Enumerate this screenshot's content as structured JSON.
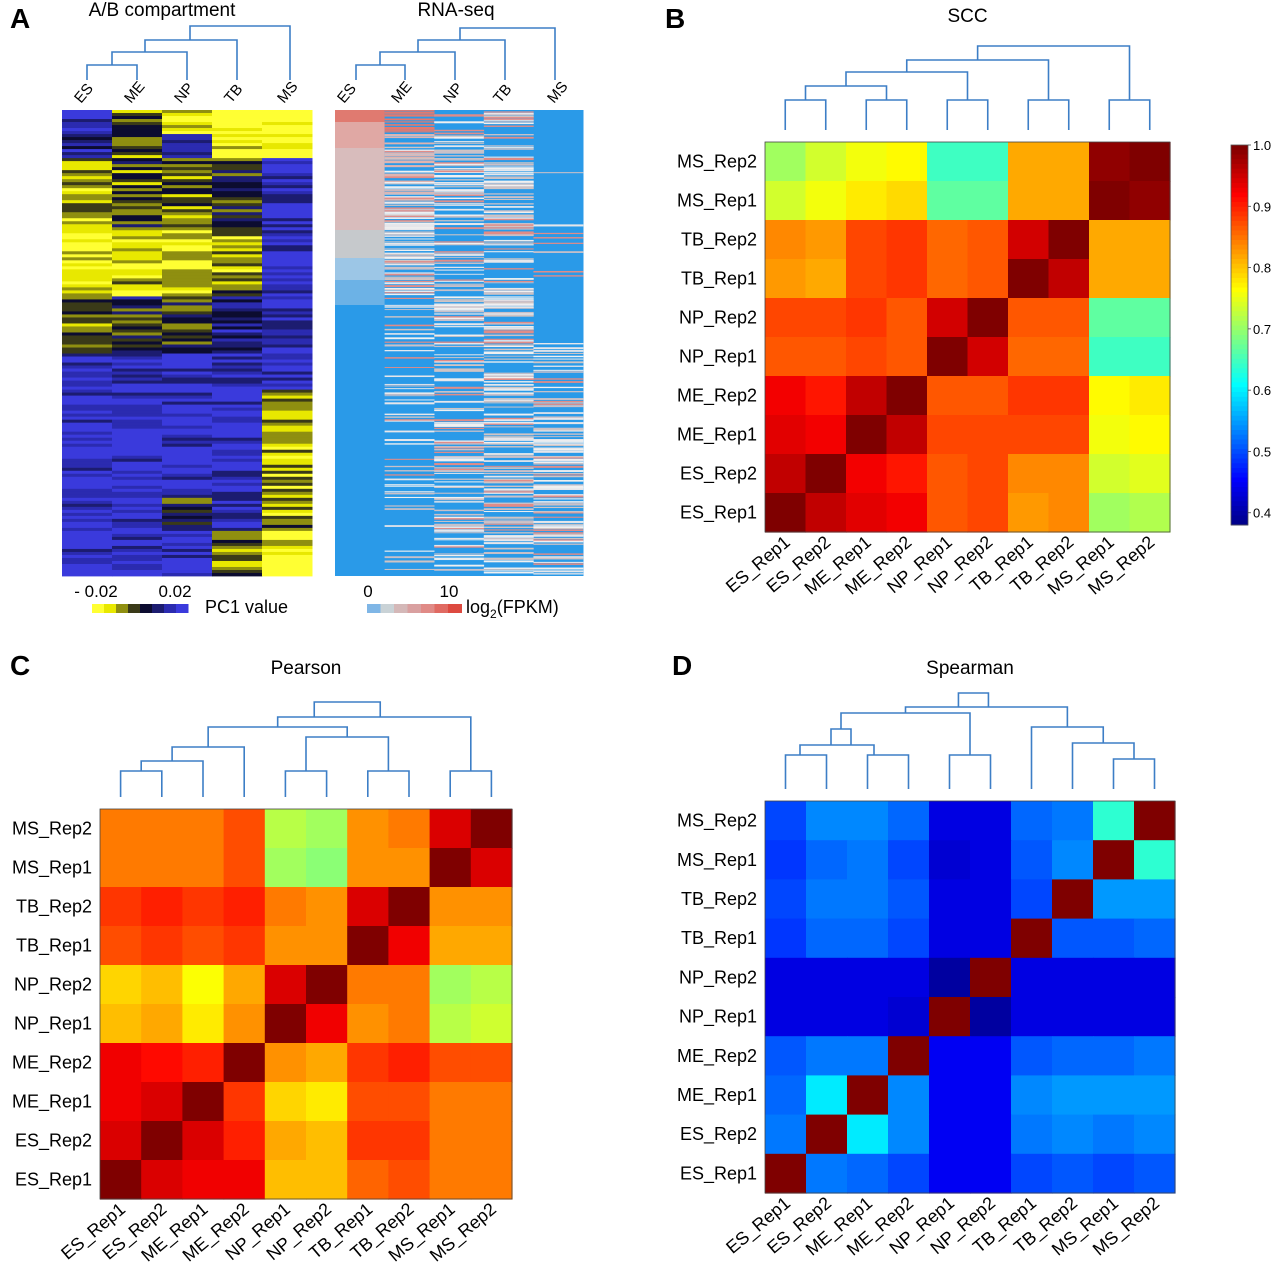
{
  "panel_letters": {
    "a": "A",
    "b": "B",
    "c": "C",
    "d": "D"
  },
  "panel_a": {
    "left_title": "A/B compartment",
    "right_title": "RNA-seq",
    "left_columns": [
      "ES",
      "ME",
      "NP",
      "TB",
      "MS"
    ],
    "right_columns": [
      "ES",
      "ME",
      "NP",
      "TB",
      "MS"
    ],
    "pc1_scale": {
      "tick_labels": [
        "- 0.02",
        "0.02"
      ],
      "label": "PC1 value",
      "colors": [
        "#ffff33",
        "#e8e800",
        "#8f8f10",
        "#3a3a18",
        "#0c0c30",
        "#1c1c70",
        "#2b2bb0",
        "#3a3adc"
      ]
    },
    "fpkm_scale": {
      "tick_labels": [
        "0",
        "10"
      ],
      "label_main": "log",
      "label_sub": "2",
      "label_paren": "(FPKM)",
      "colors": [
        "#7fb6e6",
        "#c9d2d6",
        "#d4b8b8",
        "#d9a0a0",
        "#e08a86",
        "#e06a62",
        "#dd4a40"
      ]
    }
  },
  "colors": {
    "dendrogram": "#3d7ec6",
    "heatmap_scale": [
      "#00007f",
      "#0000ff",
      "#0080ff",
      "#00ffff",
      "#80ff80",
      "#ffff00",
      "#ff8000",
      "#ff0000",
      "#7f0000"
    ]
  },
  "chart_data": [
    {
      "type": "heatmap",
      "panel": "B",
      "title": "SCC",
      "row_labels_top_to_bottom": [
        "MS_Rep2",
        "MS_Rep1",
        "TB_Rep2",
        "TB_Rep1",
        "NP_Rep2",
        "NP_Rep1",
        "ME_Rep2",
        "ME_Rep1",
        "ES_Rep2",
        "ES_Rep1"
      ],
      "col_labels": [
        "ES_Rep1",
        "ES_Rep2",
        "ME_Rep1",
        "ME_Rep2",
        "NP_Rep1",
        "NP_Rep2",
        "TB_Rep1",
        "TB_Rep2",
        "MS_Rep1",
        "MS_Rep2"
      ],
      "values": [
        [
          0.71,
          0.74,
          0.76,
          0.77,
          0.65,
          0.65,
          0.82,
          0.82,
          0.99,
          1.0
        ],
        [
          0.74,
          0.76,
          0.78,
          0.79,
          0.67,
          0.67,
          0.82,
          0.82,
          1.0,
          0.99
        ],
        [
          0.84,
          0.83,
          0.88,
          0.89,
          0.86,
          0.87,
          0.95,
          1.0,
          0.82,
          0.82
        ],
        [
          0.83,
          0.82,
          0.88,
          0.89,
          0.86,
          0.87,
          1.0,
          0.96,
          0.82,
          0.82
        ],
        [
          0.88,
          0.88,
          0.89,
          0.87,
          0.95,
          1.0,
          0.87,
          0.87,
          0.67,
          0.67
        ],
        [
          0.87,
          0.87,
          0.88,
          0.87,
          1.0,
          0.95,
          0.86,
          0.86,
          0.65,
          0.65
        ],
        [
          0.93,
          0.91,
          0.96,
          1.0,
          0.87,
          0.87,
          0.89,
          0.89,
          0.77,
          0.78
        ],
        [
          0.94,
          0.93,
          1.0,
          0.96,
          0.88,
          0.88,
          0.88,
          0.88,
          0.76,
          0.77
        ],
        [
          0.96,
          1.0,
          0.93,
          0.91,
          0.87,
          0.88,
          0.84,
          0.84,
          0.74,
          0.75
        ],
        [
          1.0,
          0.96,
          0.94,
          0.93,
          0.87,
          0.88,
          0.83,
          0.84,
          0.71,
          0.72
        ]
      ],
      "colorbar": {
        "range": [
          0.38,
          1.0
        ],
        "tick_labels": [
          "1.0",
          "0.9",
          "0.8",
          "0.7",
          "0.6",
          "0.5",
          "0.4"
        ]
      }
    },
    {
      "type": "heatmap",
      "panel": "C",
      "title": "Pearson",
      "row_labels_top_to_bottom": [
        "MS_Rep2",
        "MS_Rep1",
        "TB_Rep2",
        "TB_Rep1",
        "NP_Rep2",
        "NP_Rep1",
        "ME_Rep2",
        "ME_Rep1",
        "ES_Rep2",
        "ES_Rep1"
      ],
      "col_labels": [
        "ES_Rep1",
        "ES_Rep2",
        "ME_Rep1",
        "ME_Rep2",
        "NP_Rep1",
        "NP_Rep2",
        "TB_Rep1",
        "TB_Rep2",
        "MS_Rep1",
        "MS_Rep2"
      ],
      "values": [
        [
          0.89,
          0.89,
          0.89,
          0.91,
          0.8,
          0.79,
          0.88,
          0.89,
          0.96,
          1.0
        ],
        [
          0.89,
          0.89,
          0.89,
          0.91,
          0.79,
          0.78,
          0.88,
          0.88,
          1.0,
          0.96
        ],
        [
          0.92,
          0.93,
          0.92,
          0.93,
          0.89,
          0.88,
          0.96,
          1.0,
          0.88,
          0.88
        ],
        [
          0.91,
          0.92,
          0.91,
          0.92,
          0.88,
          0.88,
          1.0,
          0.95,
          0.87,
          0.87
        ],
        [
          0.85,
          0.86,
          0.83,
          0.87,
          0.96,
          1.0,
          0.89,
          0.89,
          0.79,
          0.8
        ],
        [
          0.86,
          0.87,
          0.84,
          0.88,
          1.0,
          0.95,
          0.88,
          0.89,
          0.8,
          0.81
        ],
        [
          0.95,
          0.94,
          0.93,
          1.0,
          0.88,
          0.87,
          0.92,
          0.93,
          0.91,
          0.91
        ],
        [
          0.95,
          0.96,
          1.0,
          0.92,
          0.85,
          0.84,
          0.91,
          0.91,
          0.89,
          0.89
        ],
        [
          0.96,
          1.0,
          0.96,
          0.93,
          0.87,
          0.86,
          0.92,
          0.92,
          0.89,
          0.89
        ],
        [
          1.0,
          0.96,
          0.95,
          0.95,
          0.86,
          0.86,
          0.9,
          0.91,
          0.89,
          0.89
        ]
      ]
    },
    {
      "type": "heatmap",
      "panel": "D",
      "title": "Spearman",
      "row_labels_top_to_bottom": [
        "MS_Rep2",
        "MS_Rep1",
        "TB_Rep2",
        "TB_Rep1",
        "NP_Rep2",
        "NP_Rep1",
        "ME_Rep2",
        "ME_Rep1",
        "ES_Rep2",
        "ES_Rep1"
      ],
      "col_labels": [
        "ES_Rep1",
        "ES_Rep2",
        "ME_Rep1",
        "ME_Rep2",
        "NP_Rep1",
        "NP_Rep2",
        "TB_Rep1",
        "TB_Rep2",
        "MS_Rep1",
        "MS_Rep2"
      ],
      "values": [
        [
          0.5,
          0.54,
          0.54,
          0.52,
          0.44,
          0.44,
          0.52,
          0.53,
          0.64,
          1.0
        ],
        [
          0.49,
          0.52,
          0.53,
          0.5,
          0.43,
          0.44,
          0.51,
          0.54,
          1.0,
          0.64
        ],
        [
          0.5,
          0.53,
          0.53,
          0.51,
          0.44,
          0.44,
          0.5,
          1.0,
          0.55,
          0.55
        ],
        [
          0.49,
          0.52,
          0.52,
          0.5,
          0.44,
          0.44,
          1.0,
          0.51,
          0.51,
          0.52
        ],
        [
          0.44,
          0.44,
          0.44,
          0.44,
          0.4,
          1.0,
          0.44,
          0.44,
          0.44,
          0.44
        ],
        [
          0.44,
          0.44,
          0.44,
          0.43,
          1.0,
          0.4,
          0.44,
          0.44,
          0.44,
          0.44
        ],
        [
          0.51,
          0.53,
          0.53,
          1.0,
          0.45,
          0.45,
          0.51,
          0.52,
          0.52,
          0.53
        ],
        [
          0.52,
          0.6,
          1.0,
          0.54,
          0.45,
          0.45,
          0.54,
          0.55,
          0.55,
          0.55
        ],
        [
          0.53,
          1.0,
          0.6,
          0.54,
          0.45,
          0.45,
          0.53,
          0.54,
          0.53,
          0.54
        ],
        [
          1.0,
          0.53,
          0.52,
          0.5,
          0.45,
          0.45,
          0.5,
          0.51,
          0.5,
          0.51
        ]
      ]
    }
  ]
}
